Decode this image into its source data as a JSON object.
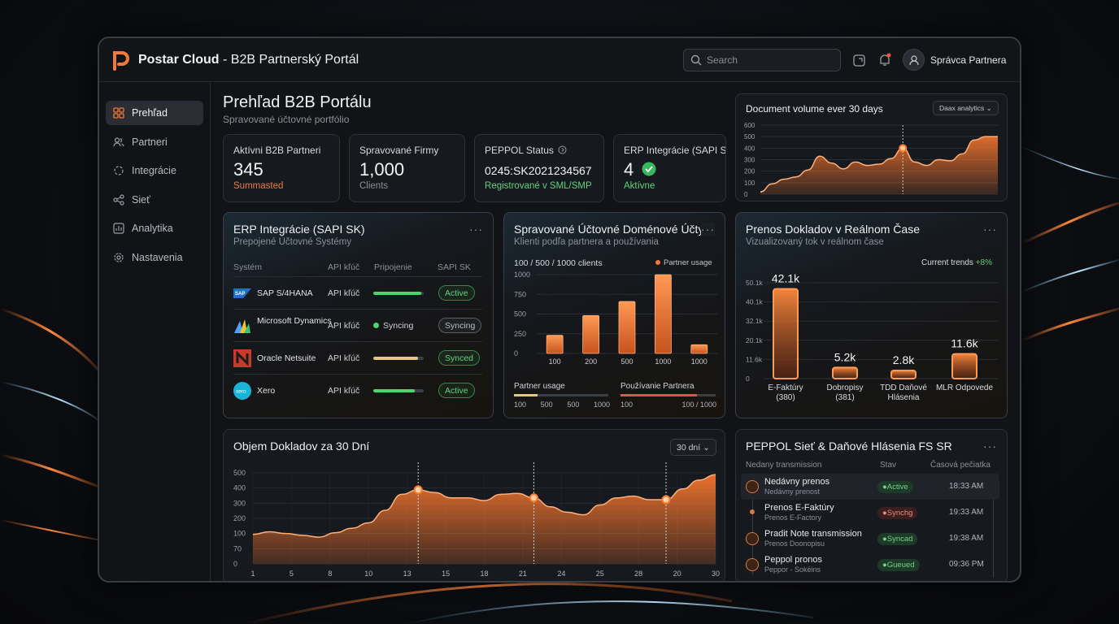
{
  "app": {
    "brand_name": "Postar Cloud",
    "brand_separator": " - ",
    "brand_subtitle": "B2B Partnerský Portál",
    "accent": "#f07a38",
    "search_placeholder": "Search",
    "user_name": "Správca Partnera"
  },
  "sidebar": {
    "items": [
      {
        "label": "Prehľad",
        "icon": "grid-icon",
        "active": true
      },
      {
        "label": "Partneri",
        "icon": "users-icon"
      },
      {
        "label": "Integrácie",
        "icon": "integration-icon"
      },
      {
        "label": "Sieť",
        "icon": "share-network-icon"
      },
      {
        "label": "Analytika",
        "icon": "analytics-icon"
      },
      {
        "label": "Nastavenia",
        "icon": "gear-icon"
      }
    ]
  },
  "page": {
    "title": "Prehľad B2B Portálu",
    "subtitle": "Spravované účtovné portfólio"
  },
  "kpis": [
    {
      "title": "Aktívni B2B Partneri",
      "value": "345",
      "sub": "Summasted",
      "sub_color": "#f07a38"
    },
    {
      "title": "Spravované Firmy",
      "value": "1,000",
      "sub": "Clients",
      "sub_color": "#8b9099"
    },
    {
      "title": "PEPPOL Status",
      "value": "0245:SK2021234567",
      "sub": "Registrované v SML/SMP",
      "sub_color": "#5fd27f"
    },
    {
      "title": "ERP Integrácie (SAPI SK)",
      "value": "4",
      "sub": "Aktívne",
      "sub_color": "#5fd27f"
    }
  ],
  "doc_volume_mini": {
    "title": "Document volume ever 30 days",
    "dropdown": "Daax analytics",
    "y_ticks": [
      "600",
      "500",
      "400",
      "300",
      "200",
      "100",
      "0"
    ]
  },
  "erp_panel": {
    "title": "ERP Integrácie (SAPI SK)",
    "subtitle": "Prepojené Účtovné Systémy",
    "headers": {
      "system": "Systém",
      "key": "API kľúč",
      "conn": "Pripojenie",
      "sapi": "SAPI SK"
    },
    "rows": [
      {
        "name": "SAP S/4HANA",
        "key": "API kľúč",
        "progress": 0.95,
        "bar_color": "#4cd46e",
        "status": "Active",
        "status_style": "green"
      },
      {
        "name": "Microsoft Dynamics",
        "key": "API kľúč",
        "conn_text": "Syncing",
        "status": "Syncing",
        "status_style": "grey"
      },
      {
        "name": "Oracle Netsuite",
        "key": "API kľúč",
        "progress": 0.88,
        "bar_color": "#e3c77c",
        "status": "Synced",
        "status_style": "green"
      },
      {
        "name": "Xero",
        "key": "API kľúč",
        "progress": 0.82,
        "bar_color": "#4cd46e",
        "status": "Active",
        "status_style": "green"
      }
    ]
  },
  "domains_panel": {
    "title": "Spravované Účtovné Doménové Účty",
    "subtitle": "Klienti podľa partnera a používania",
    "caption": "100 / 500 / 1000 clients",
    "legend": "Partner usage",
    "partner_usage_label": "Partner usage",
    "partner_usage_ticks": [
      "100",
      "500",
      "500",
      "1000"
    ],
    "partner_usage_fill": 0.25,
    "usage_label": "Používanie Partnera",
    "usage_ticks": [
      "100",
      "100 / 1000"
    ],
    "usage_fill": 0.8
  },
  "realtime_panel": {
    "title": "Prenos Dokladov v Reálnom Čase",
    "subtitle": "Vizualizovaný tok v reálnom čase",
    "trend_label": "Current trends",
    "trend_value": "+8%"
  },
  "volume_panel": {
    "title": "Objem Dokladov za 30 Dní",
    "dropdown": "30 dní"
  },
  "peppol_panel": {
    "title": "PEPPOL Sieť & Daňové Hlásenia FS SR",
    "headers": {
      "a": "Nedany transmission",
      "b": "Stav",
      "c": "Časová pečiatka"
    },
    "rows": [
      {
        "title": "Nedávny prenos",
        "sub": "Nedávny prenost",
        "status": "Active",
        "style": "g",
        "time": "18:33 AM"
      },
      {
        "title": "Prenos E-Faktúry",
        "sub": "Prenos E-Factory",
        "status": "Synchg",
        "style": "r",
        "time": "19:33 AM"
      },
      {
        "title": "Pradit Note transmission",
        "sub": "Prenos Doonopisu",
        "status": "Syncad",
        "style": "g",
        "time": "19:38 AM"
      },
      {
        "title": "Peppol pronos",
        "sub": "Peppor - Sokéins",
        "status": "Gueued",
        "style": "g",
        "time": "09:36 PM"
      }
    ]
  },
  "chart_data": [
    {
      "type": "area",
      "title": "Document volume ever 30 days",
      "ylim": [
        0,
        600
      ],
      "y_ticks": [
        0,
        100,
        200,
        300,
        400,
        500,
        600
      ],
      "x": [
        0,
        1,
        2,
        3,
        4,
        5,
        6,
        7,
        8,
        9,
        10,
        11,
        12,
        13,
        14,
        15,
        16,
        17,
        18,
        19,
        20
      ],
      "values": [
        20,
        90,
        130,
        150,
        210,
        330,
        270,
        220,
        280,
        250,
        260,
        310,
        400,
        280,
        250,
        300,
        290,
        350,
        470,
        500,
        500
      ],
      "highlight_index": 12
    },
    {
      "type": "bar",
      "title": "Spravované Účtovné Doménové Účty",
      "categories": [
        "100",
        "200",
        "500",
        "1000",
        "1000"
      ],
      "values": [
        230,
        480,
        660,
        1000,
        110
      ],
      "ylim": [
        0,
        1000
      ],
      "y_ticks": [
        0,
        250,
        500,
        750,
        1000
      ]
    },
    {
      "type": "bar",
      "title": "Prenos Dokladov v Reálnom Čase",
      "categories": [
        "E-Faktúry (380)",
        "Dobropisy (381)",
        "TDD Daňové Hlásenia",
        "MLR Odpovede"
      ],
      "values": [
        42.1,
        5.2,
        2.8,
        11.6
      ],
      "data_labels": [
        "42.1k",
        "5.2k",
        "2.8k",
        "11.6k"
      ],
      "y_ticks": [
        "0",
        "11.6k",
        "20.1k",
        "32.1k",
        "40.1k",
        "50.1k"
      ]
    },
    {
      "type": "area",
      "title": "Objem Dokladov za 30 Dní",
      "ylim": [
        0,
        500
      ],
      "y_ticks": [
        "0",
        "70",
        "100",
        "200",
        "300",
        "400",
        "500"
      ],
      "x_ticks": [
        "1",
        "5",
        "8",
        "10",
        "13",
        "15",
        "18",
        "21",
        "24",
        "25",
        "28",
        "20",
        "30"
      ],
      "values": [
        165,
        180,
        170,
        160,
        150,
        175,
        200,
        230,
        300,
        390,
        415,
        400,
        370,
        370,
        355,
        390,
        395,
        370,
        320,
        290,
        275,
        330,
        370,
        380,
        360,
        360,
        420,
        470,
        500
      ],
      "markers": [
        10,
        17,
        25
      ]
    }
  ]
}
